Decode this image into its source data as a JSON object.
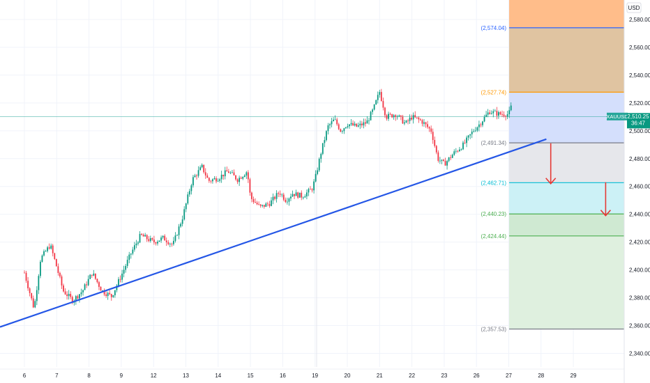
{
  "chart_data": {
    "type": "candlestick",
    "symbol": "XAUUSD",
    "currency": "USD",
    "last_price": "2,510.25",
    "countdown": "36:47",
    "ylim": [
      2330,
      2594
    ],
    "y_ticks": [
      "2,580.00",
      "2,560.00",
      "2,540.00",
      "2,520.00",
      "2,500.00",
      "2,480.00",
      "2,460.00",
      "2,440.00",
      "2,420.00",
      "2,400.00",
      "2,380.00",
      "2,360.00",
      "2,340.00"
    ],
    "y_tick_values": [
      2580,
      2560,
      2540,
      2520,
      2500,
      2480,
      2460,
      2440,
      2420,
      2400,
      2380,
      2360,
      2340
    ],
    "x_ticks": [
      "6",
      "7",
      "8",
      "9",
      "12",
      "13",
      "14",
      "15",
      "16",
      "19",
      "20",
      "21",
      "22",
      "23",
      "26",
      "27",
      "28",
      "29"
    ],
    "fib_levels": [
      {
        "label": "(2,574.04)",
        "value": 2574.04,
        "color": "#2962ff"
      },
      {
        "label": "(2,527.74)",
        "value": 2527.74,
        "color": "#ff9800"
      },
      {
        "label": "(2,491.34)",
        "value": 2491.34,
        "color": "#787b86"
      },
      {
        "label": "(2,462.71)",
        "value": 2462.71,
        "color": "#00bcd4"
      },
      {
        "label": "(2,440.23)",
        "value": 2440.23,
        "color": "#4caf50"
      },
      {
        "label": "(2,424.44)",
        "value": 2424.44,
        "color": "#4caf50"
      },
      {
        "label": "(2,357.53)",
        "value": 2357.53,
        "color": "#787b86"
      }
    ],
    "zones": [
      {
        "from": 2594,
        "to": 2574.04,
        "color": "#ffbd8a"
      },
      {
        "from": 2574.04,
        "to": 2527.74,
        "color": "#e0c4a1"
      },
      {
        "from": 2527.74,
        "to": 2491.34,
        "color": "#d4dffc"
      },
      {
        "from": 2491.34,
        "to": 2462.71,
        "color": "#e6e7eb"
      },
      {
        "from": 2462.71,
        "to": 2440.23,
        "color": "#ccf1f6"
      },
      {
        "from": 2440.23,
        "to": 2424.44,
        "color": "#cfe9d2"
      },
      {
        "from": 2424.44,
        "to": 2357.53,
        "color": "#dff0df"
      }
    ],
    "trendline": {
      "start": [
        0,
        2359
      ],
      "end": [
        18.0,
        2494
      ],
      "color": "#2456e6"
    },
    "arrows": [
      {
        "x": 16.3,
        "from": 2491,
        "to": 2462
      },
      {
        "x": 18.0,
        "from": 2463,
        "to": 2439
      }
    ],
    "ohlc_anchors": [
      [
        0.0,
        2398
      ],
      [
        0.3,
        2372
      ],
      [
        0.5,
        2408
      ],
      [
        0.8,
        2418
      ],
      [
        1.0,
        2402
      ],
      [
        1.2,
        2385
      ],
      [
        1.5,
        2378
      ],
      [
        1.8,
        2385
      ],
      [
        2.1,
        2398
      ],
      [
        2.4,
        2385
      ],
      [
        2.7,
        2381
      ],
      [
        3.0,
        2396
      ],
      [
        3.3,
        2412
      ],
      [
        3.6,
        2425
      ],
      [
        4.0,
        2420
      ],
      [
        4.3,
        2423
      ],
      [
        4.6,
        2418
      ],
      [
        4.9,
        2438
      ],
      [
        5.2,
        2465
      ],
      [
        5.5,
        2474
      ],
      [
        5.7,
        2464
      ],
      [
        6.0,
        2466
      ],
      [
        6.3,
        2471
      ],
      [
        6.6,
        2465
      ],
      [
        6.9,
        2471
      ],
      [
        7.0,
        2452
      ],
      [
        7.3,
        2445
      ],
      [
        7.6,
        2448
      ],
      [
        7.9,
        2456
      ],
      [
        8.1,
        2450
      ],
      [
        8.3,
        2455
      ],
      [
        8.6,
        2453
      ],
      [
        8.9,
        2458
      ],
      [
        9.0,
        2465
      ],
      [
        9.2,
        2486
      ],
      [
        9.4,
        2503
      ],
      [
        9.6,
        2508
      ],
      [
        9.8,
        2500
      ],
      [
        10.0,
        2505
      ],
      [
        10.3,
        2503
      ],
      [
        10.6,
        2506
      ],
      [
        10.8,
        2515
      ],
      [
        11.0,
        2528
      ],
      [
        11.2,
        2510
      ],
      [
        11.5,
        2512
      ],
      [
        11.8,
        2505
      ],
      [
        12.0,
        2510
      ],
      [
        12.3,
        2507
      ],
      [
        12.6,
        2500
      ],
      [
        12.8,
        2480
      ],
      [
        13.0,
        2476
      ],
      [
        13.3,
        2484
      ],
      [
        13.6,
        2490
      ],
      [
        13.9,
        2500
      ],
      [
        14.1,
        2505
      ],
      [
        14.4,
        2514
      ],
      [
        14.7,
        2512
      ],
      [
        15.0,
        2512
      ],
      [
        15.2,
        2526
      ],
      [
        15.4,
        2516
      ],
      [
        15.7,
        2510
      ]
    ],
    "session_separator_x": 9.05
  }
}
